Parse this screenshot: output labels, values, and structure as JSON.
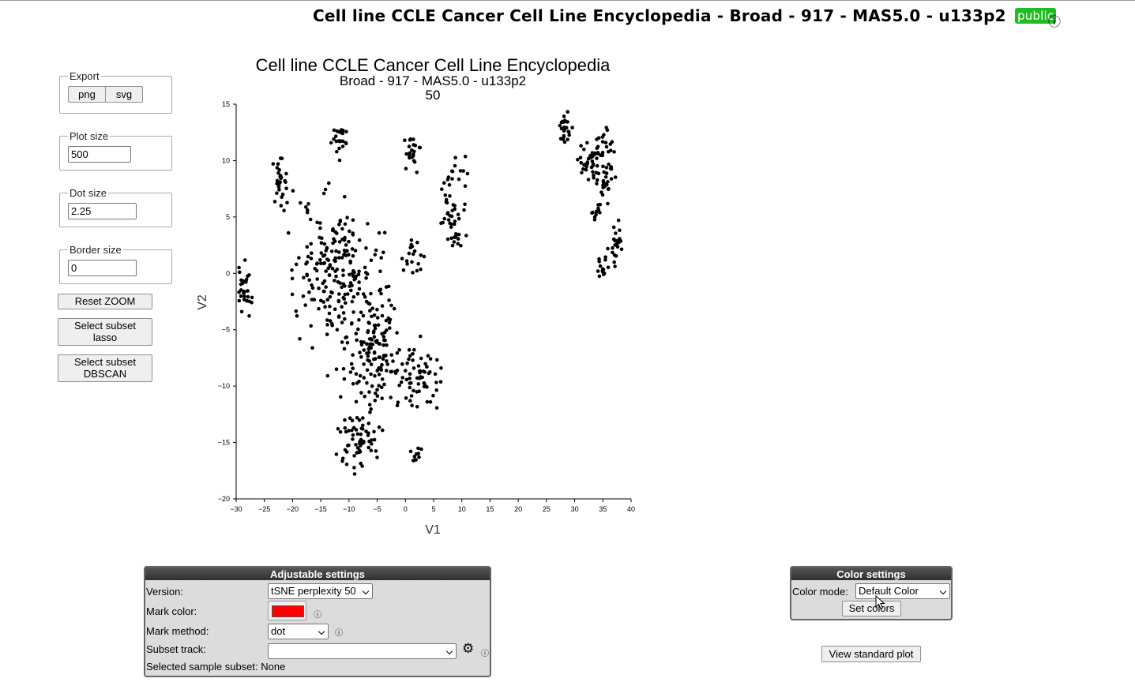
{
  "header": {
    "title": "Cell line CCLE Cancer Cell Line Encyclopedia - Broad - 917 - MAS5.0 - u133p2",
    "badge": "public",
    "info_icon": "ⓘ"
  },
  "sidebar": {
    "export": {
      "legend": "Export",
      "png": "png",
      "svg": "svg"
    },
    "plot_size": {
      "legend": "Plot size",
      "value": "500"
    },
    "dot_size": {
      "legend": "Dot size",
      "value": "2.25"
    },
    "border_size": {
      "legend": "Border size",
      "value": "0"
    },
    "reset_zoom": "Reset ZOOM",
    "lasso": "Select subset lasso",
    "dbscan": "Select subset DBSCAN"
  },
  "chart_data": {
    "type": "scatter",
    "title": "Cell line CCLE Cancer Cell Line Encyclopedia",
    "subtitle": "Broad - 917 - MAS5.0 - u133p2",
    "subtitle2": "50",
    "xlabel": "V1",
    "ylabel": "V2",
    "xlim": [
      -30,
      40
    ],
    "ylim": [
      -20,
      15
    ],
    "xticks": [
      -30,
      -25,
      -20,
      -15,
      -10,
      -5,
      0,
      5,
      10,
      15,
      20,
      25,
      30,
      35,
      40
    ],
    "yticks": [
      15,
      10,
      5,
      0,
      -5,
      -10,
      -15,
      -20
    ],
    "xtick_labels": [
      "−30",
      "−25",
      "−20",
      "−15",
      "−10",
      "−5",
      "0",
      "5",
      "10",
      "15",
      "20",
      "25",
      "30",
      "35",
      "40"
    ],
    "ytick_labels": [
      "15",
      "10",
      "5",
      "0",
      "−5",
      "−10",
      "−15",
      "−20"
    ],
    "point_color": "#000000",
    "clusters": [
      {
        "cx": -11.8,
        "cy": 12.0,
        "sx": 0.6,
        "sy": 1.0,
        "n": 22
      },
      {
        "cx": -22.5,
        "cy": 8.0,
        "sx": 0.8,
        "sy": 0.9,
        "n": 30
      },
      {
        "cx": 1.0,
        "cy": 10.5,
        "sx": 0.8,
        "sy": 0.8,
        "n": 22
      },
      {
        "cx": 8.5,
        "cy": 6.5,
        "sx": 1.2,
        "sy": 2.2,
        "n": 55
      },
      {
        "cx": 1.5,
        "cy": 1.5,
        "sx": 0.8,
        "sy": 1.0,
        "n": 18
      },
      {
        "cx": -28.5,
        "cy": -1.5,
        "sx": 0.8,
        "sy": 1.2,
        "n": 30
      },
      {
        "cx": -12.5,
        "cy": 0.5,
        "sx": 3.5,
        "sy": 3.0,
        "n": 200
      },
      {
        "cx": -5.5,
        "cy": -6.5,
        "sx": 2.7,
        "sy": 2.7,
        "n": 160
      },
      {
        "cx": 2.5,
        "cy": -9.5,
        "sx": 1.7,
        "sy": 1.5,
        "n": 60
      },
      {
        "cx": -8.5,
        "cy": -15.0,
        "sx": 2.0,
        "sy": 1.2,
        "n": 60
      },
      {
        "cx": 2.0,
        "cy": -16.2,
        "sx": 0.5,
        "sy": 0.5,
        "n": 10
      },
      {
        "cx": 28.2,
        "cy": 13.0,
        "sx": 0.5,
        "sy": 0.7,
        "n": 25
      },
      {
        "cx": 33.8,
        "cy": 10.2,
        "sx": 1.6,
        "sy": 1.2,
        "n": 70
      },
      {
        "cx": 35.5,
        "cy": 7.5,
        "sx": 0.5,
        "sy": 0.6,
        "n": 12
      },
      {
        "cx": 33.8,
        "cy": 5.5,
        "sx": 0.4,
        "sy": 0.5,
        "n": 12
      },
      {
        "cx": 37.2,
        "cy": 2.8,
        "sx": 0.5,
        "sy": 0.8,
        "n": 25
      },
      {
        "cx": 35.0,
        "cy": 0.0,
        "sx": 0.4,
        "sy": 0.9,
        "n": 15
      }
    ]
  },
  "adjustable": {
    "title": "Adjustable settings",
    "version_label": "Version:",
    "version_value": "tSNE perplexity 50",
    "mark_color_label": "Mark color:",
    "mark_color": "#ff0000",
    "mark_method_label": "Mark method:",
    "mark_method_value": "dot",
    "subset_track_label": "Subset track:",
    "subset_track_value": "",
    "selected_label": "Selected sample subset:",
    "selected_value": "None",
    "info_icon": "ⓘ",
    "gear_icon": "⚙"
  },
  "color_settings": {
    "title": "Color settings",
    "mode_label": "Color mode:",
    "mode_value": "Default Color",
    "set_colors": "Set colors"
  },
  "view_standard_plot": "View standard plot"
}
